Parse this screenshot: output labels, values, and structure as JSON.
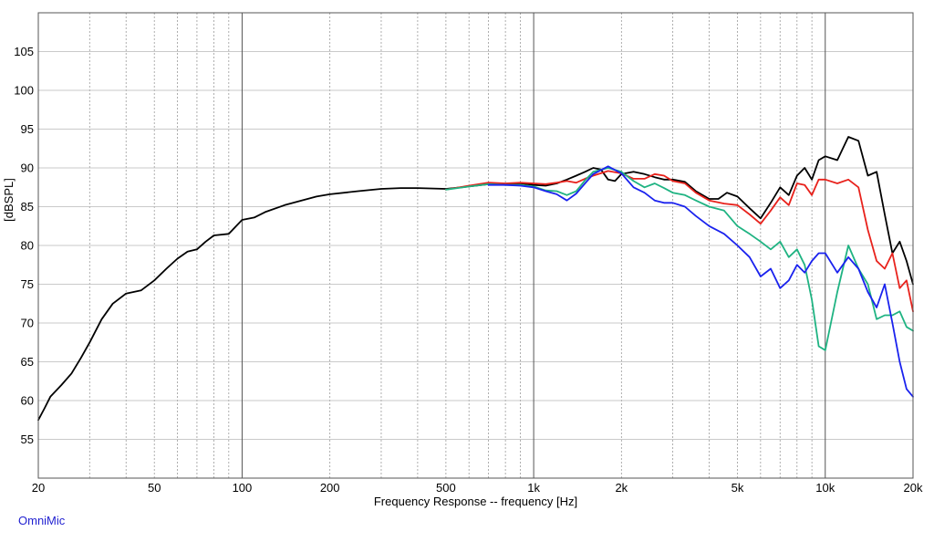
{
  "chart_data": {
    "type": "line",
    "title": "",
    "xlabel": "Frequency Response -- frequency [Hz]",
    "ylabel": "[dBSPL]",
    "x_scale": "log",
    "xlim": [
      20,
      20000
    ],
    "ylim": [
      50,
      110
    ],
    "grid": true,
    "x_ticks": [
      {
        "value": 20,
        "label": "20"
      },
      {
        "value": 50,
        "label": "50"
      },
      {
        "value": 100,
        "label": "100"
      },
      {
        "value": 200,
        "label": "200"
      },
      {
        "value": 500,
        "label": "500"
      },
      {
        "value": 1000,
        "label": "1k"
      },
      {
        "value": 2000,
        "label": "2k"
      },
      {
        "value": 5000,
        "label": "5k"
      },
      {
        "value": 10000,
        "label": "10k"
      },
      {
        "value": 20000,
        "label": "20k"
      }
    ],
    "y_ticks": [
      55,
      60,
      65,
      70,
      75,
      80,
      85,
      90,
      95,
      100,
      105
    ],
    "series": [
      {
        "color": "#000000",
        "points": [
          [
            20,
            57.5
          ],
          [
            21,
            59
          ],
          [
            22,
            60.5
          ],
          [
            24,
            62
          ],
          [
            26,
            63.5
          ],
          [
            28,
            65.5
          ],
          [
            30,
            67.5
          ],
          [
            33,
            70.5
          ],
          [
            36,
            72.5
          ],
          [
            40,
            73.8
          ],
          [
            45,
            74.2
          ],
          [
            50,
            75.5
          ],
          [
            55,
            77
          ],
          [
            60,
            78.3
          ],
          [
            65,
            79.2
          ],
          [
            70,
            79.5
          ],
          [
            75,
            80.5
          ],
          [
            80,
            81.3
          ],
          [
            90,
            81.5
          ],
          [
            100,
            83.3
          ],
          [
            110,
            83.6
          ],
          [
            120,
            84.3
          ],
          [
            140,
            85.2
          ],
          [
            160,
            85.8
          ],
          [
            180,
            86.3
          ],
          [
            200,
            86.6
          ],
          [
            250,
            87
          ],
          [
            300,
            87.3
          ],
          [
            350,
            87.4
          ],
          [
            400,
            87.4
          ],
          [
            500,
            87.3
          ],
          [
            600,
            87.6
          ],
          [
            700,
            87.9
          ],
          [
            800,
            87.9
          ],
          [
            900,
            88
          ],
          [
            1000,
            87.8
          ],
          [
            1100,
            87.7
          ],
          [
            1200,
            88
          ],
          [
            1300,
            88.5
          ],
          [
            1400,
            89
          ],
          [
            1500,
            89.5
          ],
          [
            1600,
            90
          ],
          [
            1700,
            89.8
          ],
          [
            1800,
            88.5
          ],
          [
            1900,
            88.3
          ],
          [
            2000,
            89.2
          ],
          [
            2200,
            89.5
          ],
          [
            2400,
            89.2
          ],
          [
            2600,
            88.8
          ],
          [
            2800,
            88.5
          ],
          [
            3000,
            88.5
          ],
          [
            3300,
            88.2
          ],
          [
            3600,
            87
          ],
          [
            4000,
            86
          ],
          [
            4300,
            86
          ],
          [
            4600,
            86.8
          ],
          [
            5000,
            86.3
          ],
          [
            5500,
            84.8
          ],
          [
            6000,
            83.5
          ],
          [
            6500,
            85.5
          ],
          [
            7000,
            87.5
          ],
          [
            7500,
            86.5
          ],
          [
            8000,
            89
          ],
          [
            8500,
            90
          ],
          [
            9000,
            88.5
          ],
          [
            9500,
            91
          ],
          [
            10000,
            91.5
          ],
          [
            11000,
            91
          ],
          [
            12000,
            94
          ],
          [
            13000,
            93.5
          ],
          [
            14000,
            89
          ],
          [
            15000,
            89.5
          ],
          [
            16000,
            84
          ],
          [
            17000,
            79
          ],
          [
            18000,
            80.5
          ],
          [
            19000,
            78
          ],
          [
            20000,
            75
          ]
        ]
      },
      {
        "color": "#e8221c",
        "points": [
          [
            500,
            87.2
          ],
          [
            600,
            87.7
          ],
          [
            700,
            88.1
          ],
          [
            800,
            88
          ],
          [
            900,
            88.1
          ],
          [
            1000,
            88
          ],
          [
            1100,
            87.9
          ],
          [
            1200,
            88.1
          ],
          [
            1300,
            88.3
          ],
          [
            1400,
            88.1
          ],
          [
            1500,
            88.6
          ],
          [
            1600,
            89
          ],
          [
            1800,
            89.6
          ],
          [
            2000,
            89.3
          ],
          [
            2200,
            88.6
          ],
          [
            2400,
            88.6
          ],
          [
            2600,
            89.2
          ],
          [
            2800,
            89
          ],
          [
            3000,
            88.3
          ],
          [
            3300,
            88
          ],
          [
            3600,
            86.8
          ],
          [
            4000,
            85.8
          ],
          [
            4500,
            85.4
          ],
          [
            5000,
            85.2
          ],
          [
            5500,
            84
          ],
          [
            6000,
            82.8
          ],
          [
            6500,
            84.5
          ],
          [
            7000,
            86.2
          ],
          [
            7500,
            85.2
          ],
          [
            8000,
            88
          ],
          [
            8500,
            87.8
          ],
          [
            9000,
            86.5
          ],
          [
            9500,
            88.5
          ],
          [
            10000,
            88.5
          ],
          [
            11000,
            88
          ],
          [
            12000,
            88.5
          ],
          [
            13000,
            87.5
          ],
          [
            14000,
            82
          ],
          [
            15000,
            78
          ],
          [
            16000,
            77
          ],
          [
            17000,
            79
          ],
          [
            18000,
            74.5
          ],
          [
            19000,
            75.5
          ],
          [
            20000,
            71.5
          ]
        ]
      },
      {
        "color": "#1fb382",
        "points": [
          [
            500,
            87.2
          ],
          [
            600,
            87.6
          ],
          [
            700,
            87.9
          ],
          [
            800,
            87.8
          ],
          [
            900,
            87.8
          ],
          [
            1000,
            87.6
          ],
          [
            1100,
            87.1
          ],
          [
            1200,
            87
          ],
          [
            1300,
            86.5
          ],
          [
            1400,
            87
          ],
          [
            1500,
            88.4
          ],
          [
            1600,
            89.5
          ],
          [
            1800,
            90
          ],
          [
            2000,
            89.5
          ],
          [
            2200,
            88.3
          ],
          [
            2400,
            87.5
          ],
          [
            2600,
            88
          ],
          [
            2800,
            87.4
          ],
          [
            3000,
            86.8
          ],
          [
            3300,
            86.5
          ],
          [
            3600,
            85.8
          ],
          [
            4000,
            85
          ],
          [
            4500,
            84.5
          ],
          [
            5000,
            82.5
          ],
          [
            5500,
            81.5
          ],
          [
            6000,
            80.5
          ],
          [
            6500,
            79.5
          ],
          [
            7000,
            80.5
          ],
          [
            7500,
            78.5
          ],
          [
            8000,
            79.5
          ],
          [
            8500,
            77.5
          ],
          [
            9000,
            73
          ],
          [
            9500,
            67
          ],
          [
            10000,
            66.5
          ],
          [
            11000,
            74
          ],
          [
            12000,
            80
          ],
          [
            13000,
            77
          ],
          [
            14000,
            75
          ],
          [
            15000,
            70.5
          ],
          [
            16000,
            71
          ],
          [
            17000,
            71
          ],
          [
            18000,
            71.5
          ],
          [
            19000,
            69.5
          ],
          [
            20000,
            69
          ]
        ]
      },
      {
        "color": "#1a22ee",
        "points": [
          [
            700,
            87.8
          ],
          [
            800,
            87.8
          ],
          [
            900,
            87.7
          ],
          [
            1000,
            87.5
          ],
          [
            1100,
            87
          ],
          [
            1200,
            86.6
          ],
          [
            1300,
            85.8
          ],
          [
            1400,
            86.7
          ],
          [
            1500,
            88
          ],
          [
            1600,
            89.2
          ],
          [
            1800,
            90.2
          ],
          [
            2000,
            89.3
          ],
          [
            2200,
            87.5
          ],
          [
            2400,
            86.8
          ],
          [
            2600,
            85.8
          ],
          [
            2800,
            85.5
          ],
          [
            3000,
            85.5
          ],
          [
            3300,
            85
          ],
          [
            3600,
            83.8
          ],
          [
            4000,
            82.5
          ],
          [
            4500,
            81.5
          ],
          [
            5000,
            80
          ],
          [
            5500,
            78.5
          ],
          [
            6000,
            76
          ],
          [
            6500,
            77
          ],
          [
            7000,
            74.5
          ],
          [
            7500,
            75.5
          ],
          [
            8000,
            77.5
          ],
          [
            8500,
            76.5
          ],
          [
            9000,
            78
          ],
          [
            9500,
            79
          ],
          [
            10000,
            79
          ],
          [
            11000,
            76.5
          ],
          [
            12000,
            78.5
          ],
          [
            13000,
            77
          ],
          [
            14000,
            74
          ],
          [
            15000,
            72
          ],
          [
            16000,
            75
          ],
          [
            17000,
            70
          ],
          [
            18000,
            65
          ],
          [
            19000,
            61.5
          ],
          [
            20000,
            60.5
          ]
        ]
      }
    ]
  },
  "footer": {
    "brand": "OmniMic"
  }
}
